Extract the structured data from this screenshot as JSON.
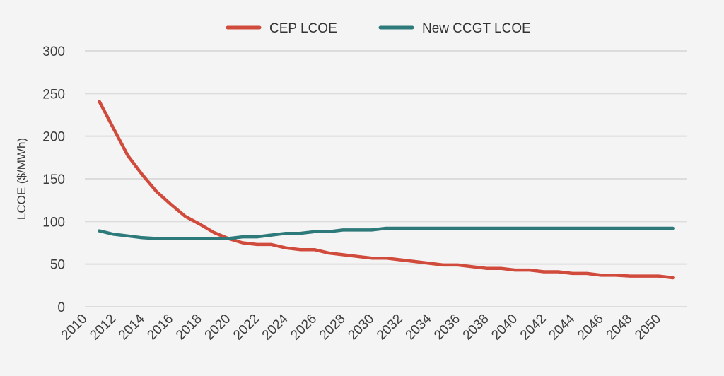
{
  "chart_data": {
    "type": "line",
    "title": "",
    "xlabel": "",
    "ylabel": "LCOE ($/MWh)",
    "ylim": [
      0,
      300
    ],
    "yticks": [
      0,
      50,
      100,
      150,
      200,
      250,
      300
    ],
    "xticks": [
      2010,
      2012,
      2014,
      2016,
      2018,
      2020,
      2022,
      2024,
      2026,
      2028,
      2030,
      2032,
      2034,
      2036,
      2038,
      2040,
      2042,
      2044,
      2046,
      2048,
      2050
    ],
    "x": [
      2011,
      2012,
      2013,
      2014,
      2015,
      2016,
      2017,
      2018,
      2019,
      2020,
      2021,
      2022,
      2023,
      2024,
      2025,
      2026,
      2027,
      2028,
      2029,
      2030,
      2031,
      2032,
      2033,
      2034,
      2035,
      2036,
      2037,
      2038,
      2039,
      2040,
      2041,
      2042,
      2043,
      2044,
      2045,
      2046,
      2047,
      2048,
      2049,
      2050,
      2051
    ],
    "series": [
      {
        "name": "CEP LCOE",
        "color": "#d14b3c",
        "values": [
          241,
          209,
          177,
          155,
          135,
          120,
          106,
          97,
          87,
          80,
          75,
          73,
          73,
          69,
          67,
          67,
          63,
          61,
          59,
          57,
          57,
          55,
          53,
          51,
          49,
          49,
          47,
          45,
          45,
          43,
          43,
          41,
          41,
          39,
          39,
          37,
          37,
          36,
          36,
          36,
          34
        ]
      },
      {
        "name": "New CCGT LCOE",
        "color": "#2e7a7a",
        "values": [
          89,
          85,
          83,
          81,
          80,
          80,
          80,
          80,
          80,
          80,
          82,
          82,
          84,
          86,
          86,
          88,
          88,
          90,
          90,
          90,
          92,
          92,
          92,
          92,
          92,
          92,
          92,
          92,
          92,
          92,
          92,
          92,
          92,
          92,
          92,
          92,
          92,
          92,
          92,
          92,
          92
        ]
      }
    ],
    "legend_position": "top-center",
    "grid": true,
    "grid_color": "#dcdcdc"
  }
}
